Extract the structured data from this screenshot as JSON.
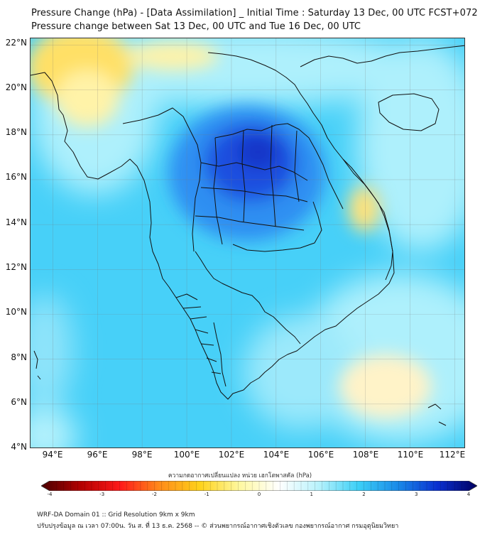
{
  "header": {
    "title_line1": "Pressure Change (hPa) - [Data Assimilation] _ Initial Time : Saturday 13 Dec, 00 UTC FCST+072",
    "title_line2": "Pressure change between Sat 13 Dec, 00 UTC and Tue 16 Dec, 00 UTC"
  },
  "map": {
    "lat_labels": [
      "22°N",
      "20°N",
      "18°N",
      "16°N",
      "14°N",
      "12°N",
      "10°N",
      "8°N",
      "6°N",
      "4°N"
    ],
    "lon_labels": [
      "94°E",
      "96°E",
      "98°E",
      "100°E",
      "102°E",
      "104°E",
      "106°E",
      "108°E",
      "110°E",
      "112°E"
    ],
    "lat_range": [
      4,
      22.3
    ],
    "lon_range": [
      93,
      112.5
    ],
    "colors": {
      "background_blue": "#47d0f8",
      "light_cyan": "#aef0fc",
      "pale_yellow": "#fff3a8",
      "yellow": "#ffe066",
      "deep_blue": "#1a4fe0",
      "mid_blue": "#2f8ff2",
      "coast_line": "#111111"
    }
  },
  "colorbar": {
    "label": "ความกดอากาศเปลี่ยนแปลง หน่วย เฮกโตพาสคัล (hPa)",
    "ticks": [
      "-4",
      "-3",
      "-2",
      "-1",
      "0",
      "1",
      "2",
      "3",
      "4"
    ],
    "min": -4,
    "max": 4,
    "stops": [
      "#4a0000",
      "#b30000",
      "#ff1a1a",
      "#ff8c1a",
      "#ffd21a",
      "#fff8a0",
      "#ffffff",
      "#b8f2fc",
      "#3cd0f7",
      "#1a8ae8",
      "#0a2fd0",
      "#000060"
    ]
  },
  "footer": {
    "line1": "WRF-DA Domain 01 :: Grid Resolution 9km x 9km",
    "line2": "ปรับปรุงข้อมูล ณ เวลา 07:00น. วัน ส. ที่ 13 ธ.ค. 2568 -- © ส่วนพยากรณ์อากาศเชิงตัวเลข กองพยากรณ์อากาศ กรมอุตุนิยมวิทยา"
  }
}
